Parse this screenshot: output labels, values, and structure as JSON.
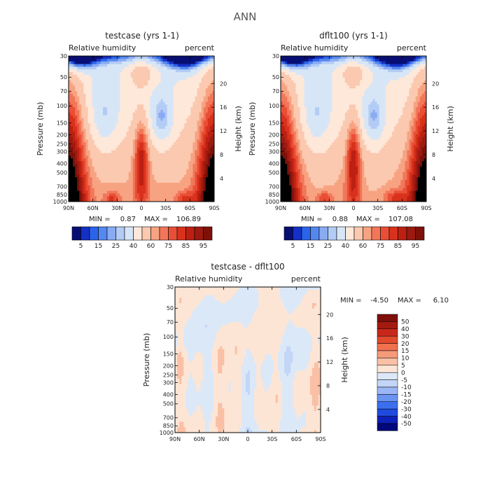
{
  "page": {
    "title": "ANN"
  },
  "colors": {
    "scale": [
      "#080f74",
      "#1530c6",
      "#2a64ea",
      "#5487ef",
      "#88abf2",
      "#b3ccf5",
      "#d7e6f7",
      "#fde8d9",
      "#fbc9b0",
      "#f7a382",
      "#f2775a",
      "#e94f36",
      "#d8321c",
      "#bd2013",
      "#9c1a10",
      "#7d1109"
    ],
    "diff_scale": [
      "#00087a",
      "#0d21b8",
      "#1f4ae0",
      "#3b6fee",
      "#6b93f2",
      "#9ab6f4",
      "#c4d6f7",
      "#dbe8f8",
      "#fde5d5",
      "#fac0a6",
      "#f59a7a",
      "#ef7150",
      "#e24a2e",
      "#c8281a",
      "#a31a10",
      "#7e0f0a"
    ]
  },
  "chart_data": [
    {
      "type": "heatmap",
      "title": "testcase (yrs 1-1)",
      "left_label": "Relative humidity",
      "right_label": "percent",
      "ylabel": "Pressure (mb)",
      "ylabel_right": "Height (km)",
      "y_ticks": [
        "30",
        "50",
        "70",
        "100",
        "150",
        "200",
        "250",
        "300",
        "400",
        "500",
        "700",
        "850",
        "1000"
      ],
      "y_ticks_right": [
        "20",
        "16",
        "12",
        "8",
        "4"
      ],
      "x_ticks": [
        "90N",
        "60N",
        "30N",
        "0",
        "30S",
        "60S",
        "90S"
      ],
      "stats": {
        "min_label": "MIN =",
        "min_value": "0.87",
        "max_label": "MAX =",
        "max_value": "106.89"
      },
      "colorbar_labels": [
        "5",
        "15",
        "25",
        "40",
        "60",
        "75",
        "85",
        "95"
      ]
    },
    {
      "type": "heatmap",
      "title": "dflt100 (yrs 1-1)",
      "left_label": "Relative humidity",
      "right_label": "percent",
      "ylabel": "Pressure (mb)",
      "ylabel_right": "Height (km)",
      "y_ticks": [
        "30",
        "50",
        "70",
        "100",
        "150",
        "200",
        "250",
        "300",
        "400",
        "500",
        "700",
        "850",
        "1000"
      ],
      "y_ticks_right": [
        "20",
        "16",
        "12",
        "8",
        "4"
      ],
      "x_ticks": [
        "90N",
        "60N",
        "30N",
        "0",
        "30S",
        "60S",
        "90S"
      ],
      "stats": {
        "min_label": "MIN =",
        "min_value": "0.88",
        "max_label": "MAX =",
        "max_value": "107.08"
      },
      "colorbar_labels": [
        "5",
        "15",
        "25",
        "40",
        "60",
        "75",
        "85",
        "95"
      ]
    },
    {
      "type": "heatmap",
      "title": "testcase - dflt100",
      "left_label": "Relative humidity",
      "right_label": "percent",
      "ylabel": "Pressure (mb)",
      "ylabel_right": "Height (km)",
      "y_ticks": [
        "30",
        "50",
        "70",
        "100",
        "150",
        "200",
        "250",
        "300",
        "400",
        "500",
        "700",
        "850",
        "1000"
      ],
      "y_ticks_right": [
        "20",
        "16",
        "12",
        "8",
        "4"
      ],
      "x_ticks": [
        "90N",
        "60N",
        "30N",
        "0",
        "30S",
        "60S",
        "90S"
      ],
      "stats": {
        "min_label": "MIN =",
        "min_value": "-4.50",
        "max_label": "MAX =",
        "max_value": "6.10"
      },
      "colorbar_labels": [
        "50",
        "40",
        "30",
        "20",
        "15",
        "10",
        "5",
        "0",
        "-5",
        "-10",
        "-15",
        "-20",
        "-30",
        "-40",
        "-50"
      ]
    }
  ]
}
